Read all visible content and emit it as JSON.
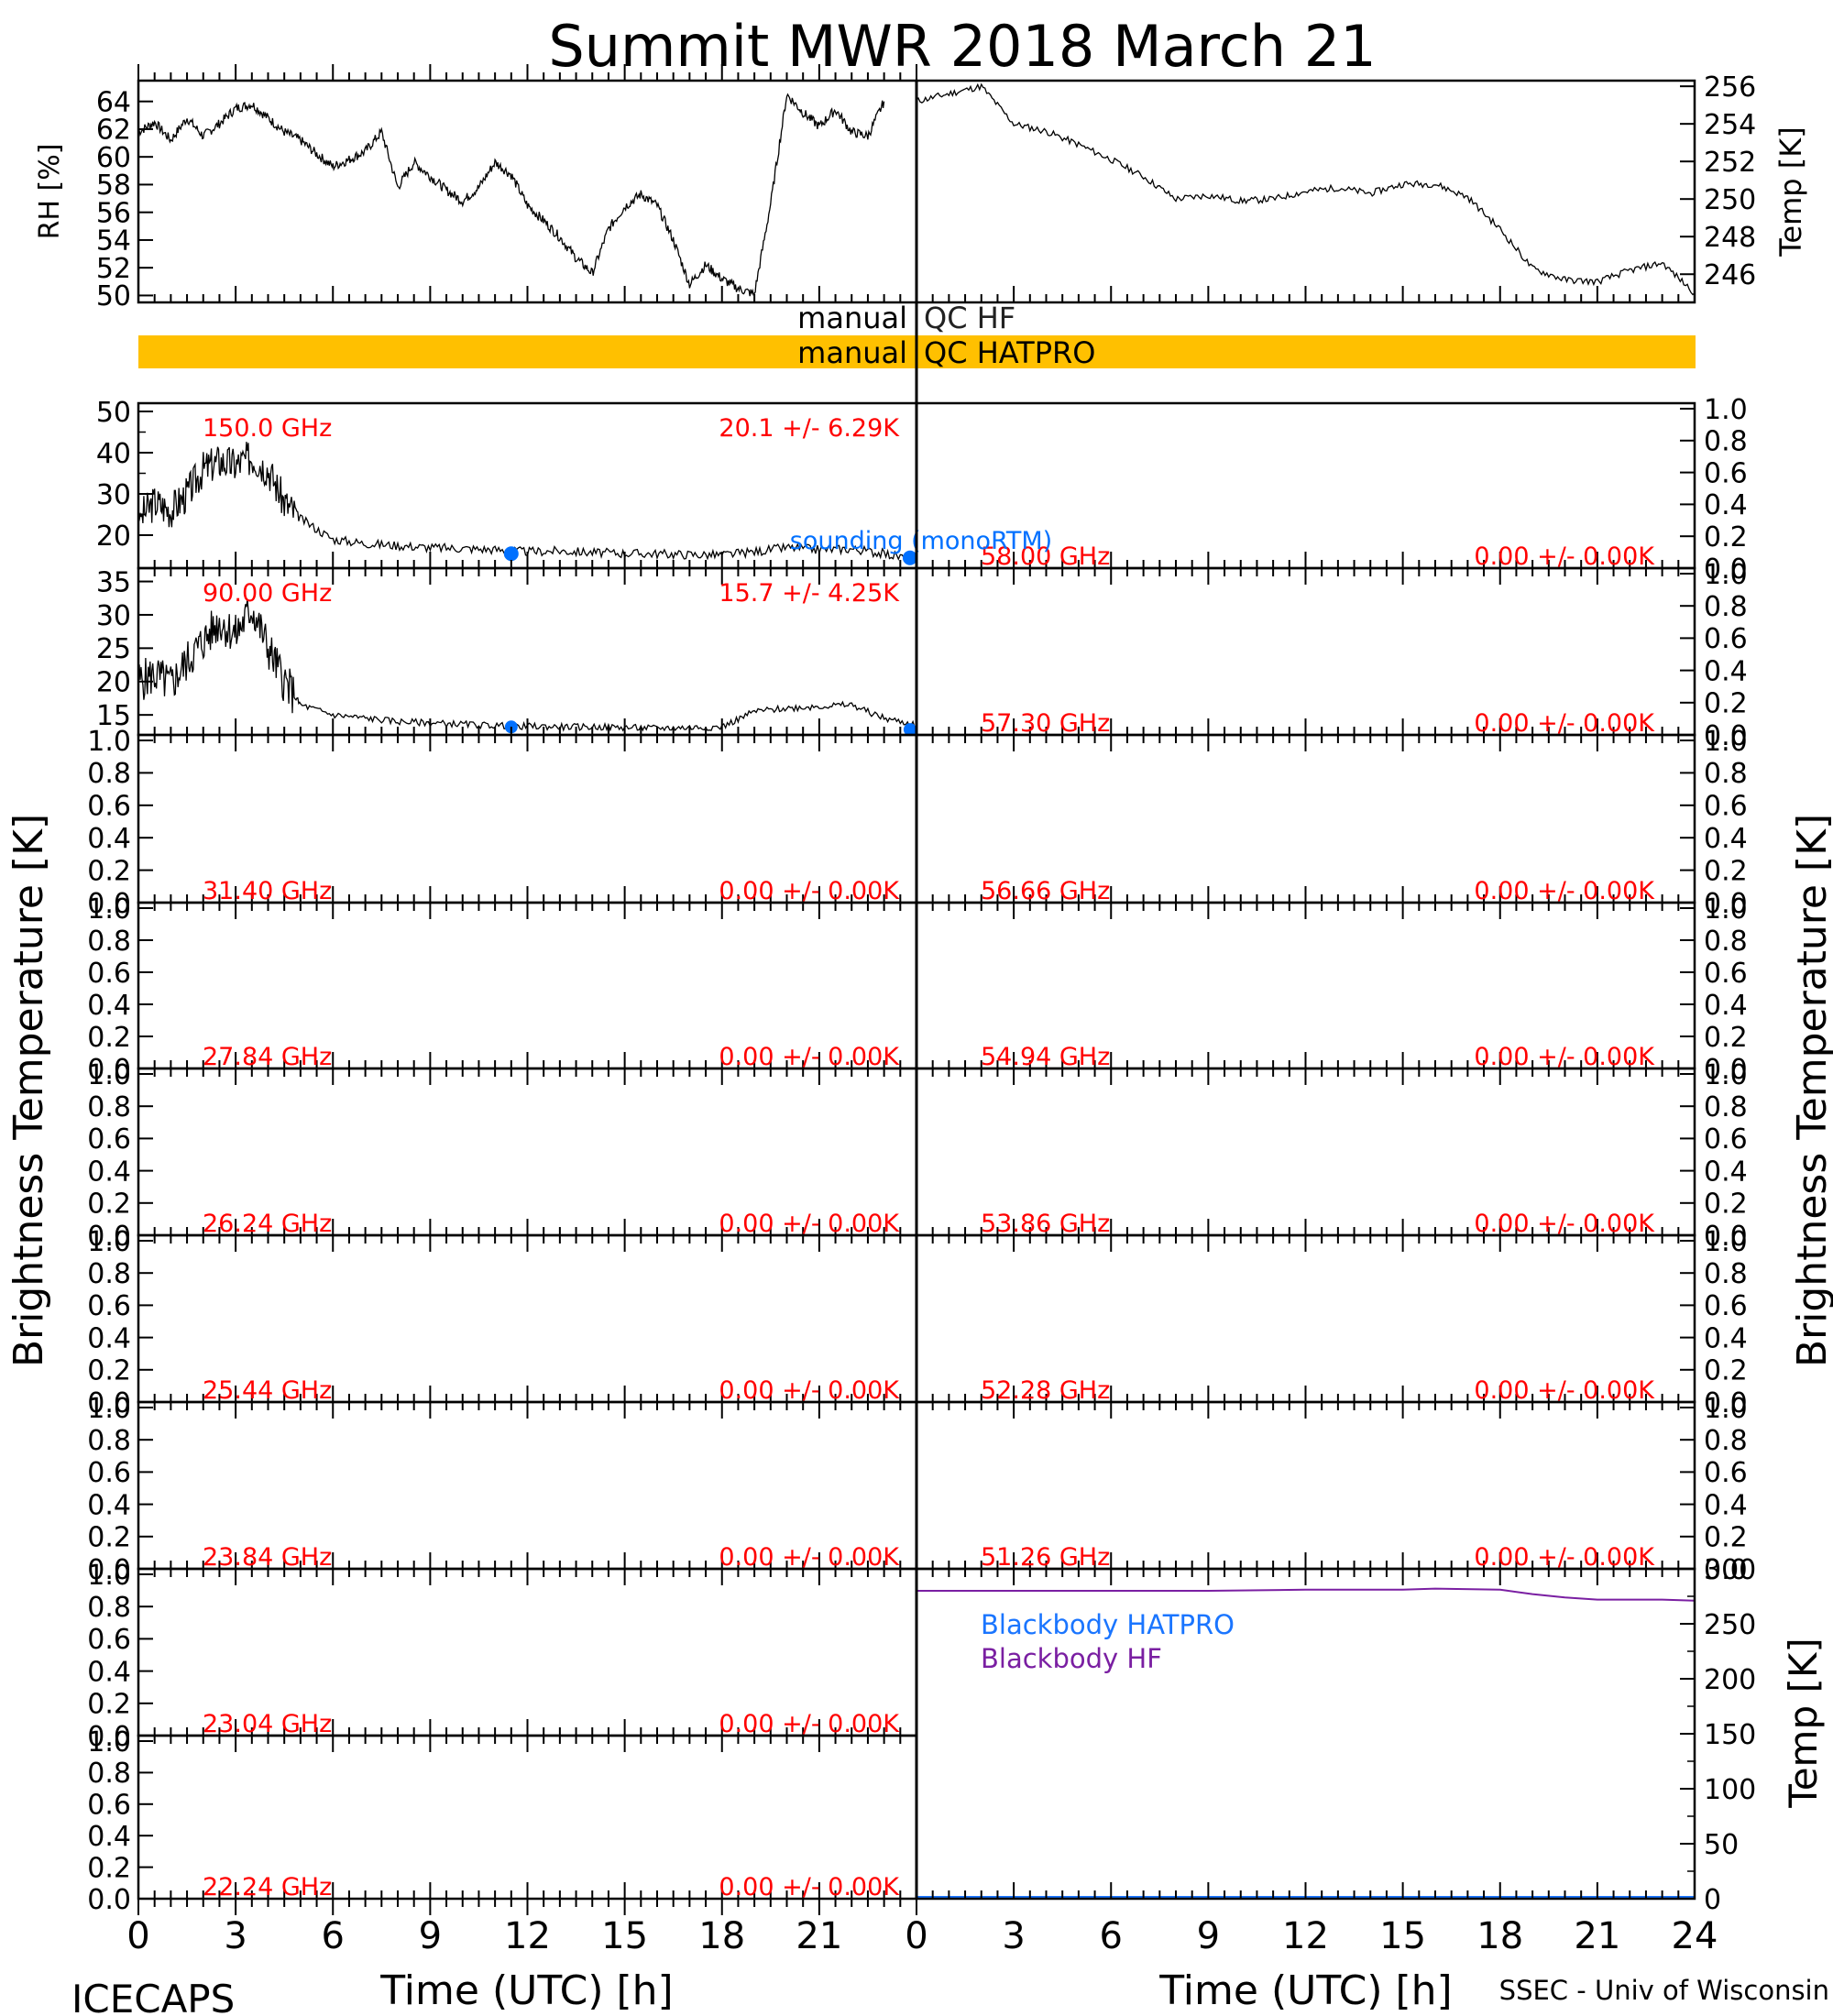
{
  "title": "Summit MWR 2018 March 21",
  "footer": {
    "left": "ICECAPS",
    "right": "SSEC - Univ of Wisconsin"
  },
  "x_axis": {
    "label": "Time (UTC) [h]",
    "range": [
      0,
      24
    ],
    "ticks": [
      "0",
      "3",
      "6",
      "9",
      "12",
      "15",
      "18",
      "21",
      "24"
    ]
  },
  "y_labels": {
    "left_tb": "Brightness Temperature [K]",
    "right_tb": "Brightness Temperature [K]"
  },
  "colors": {
    "data": "#000000",
    "label_red": "#ff0000",
    "sonde": "#0070ff",
    "qc_bar": "#ffc000",
    "bb_hatpro": "#1a75ff",
    "bb_hf": "#7a1fa2"
  },
  "qc": {
    "hf_label_left": "manual",
    "hf_label_right": "QC HF",
    "hatpro_label_left": "manual",
    "hatpro_label_right": "QC HATPRO",
    "hatpro_flag": "manual (whole day)"
  },
  "chart_data": [
    {
      "id": "rh",
      "type": "line",
      "ylabel": "RH [%]",
      "ylim": [
        49.5,
        65.5
      ],
      "yticks": [
        "50",
        "52",
        "54",
        "56",
        "58",
        "60",
        "62",
        "64"
      ],
      "x": [
        0,
        0.5,
        1,
        1.5,
        2,
        2.5,
        3,
        3.5,
        4,
        4.5,
        5,
        5.5,
        6,
        6.5,
        7,
        7.5,
        8,
        8.5,
        9,
        9.5,
        10,
        10.5,
        11,
        11.5,
        12,
        12.5,
        13,
        13.5,
        14,
        14.5,
        15,
        15.5,
        16,
        16.5,
        17,
        17.5,
        18,
        18.5,
        19,
        19.5,
        20,
        20.5,
        21,
        21.5,
        22,
        22.5,
        23
      ],
      "values": [
        61.8,
        62.5,
        61.2,
        62.8,
        61.5,
        62.4,
        63.5,
        63.8,
        62.8,
        61.8,
        61.2,
        60.2,
        59.3,
        59.8,
        60.4,
        61.8,
        57.8,
        59.6,
        58.6,
        57.6,
        56.8,
        57.8,
        59.6,
        58.7,
        56.5,
        55.4,
        54.2,
        52.7,
        51.6,
        54.8,
        56.4,
        57.3,
        56.5,
        54.0,
        50.8,
        52.2,
        51.2,
        50.5,
        50.1,
        56.6,
        64.5,
        63.2,
        62.2,
        63.4,
        61.8,
        61.5,
        64.0
      ]
    },
    {
      "id": "temp",
      "type": "line",
      "ylabel": "Temp [K]",
      "ylim": [
        244.5,
        256.3
      ],
      "yticks": [
        "246",
        "248",
        "250",
        "252",
        "254",
        "256"
      ],
      "x": [
        0,
        1,
        2,
        3,
        4,
        5,
        6,
        7,
        8,
        9,
        10,
        11,
        12,
        13,
        14,
        15,
        16,
        17,
        18,
        19,
        20,
        21,
        22,
        23,
        24
      ],
      "values": [
        255.2,
        255.6,
        256.0,
        254.0,
        253.6,
        252.9,
        252.1,
        251.2,
        250.0,
        250.2,
        249.9,
        250.0,
        250.4,
        250.6,
        250.3,
        250.8,
        250.8,
        250.1,
        248.4,
        246.3,
        245.7,
        245.6,
        246.2,
        246.6,
        245.0
      ]
    },
    {
      "id": "tb150",
      "type": "line",
      "freq_label": "150.0 GHz",
      "stats_label": "20.1 +/-  6.29K",
      "ylim": [
        12,
        52
      ],
      "yticks": [
        "20",
        "30",
        "40",
        "50"
      ],
      "x": [
        0,
        0.5,
        1,
        1.5,
        2,
        2.5,
        3,
        3.5,
        4,
        4.5,
        5,
        6,
        7,
        8,
        9,
        10,
        11,
        12,
        13,
        14,
        15,
        16,
        17,
        18,
        19,
        20,
        21,
        22,
        23,
        24
      ],
      "values": [
        24,
        28,
        26,
        30,
        36,
        38,
        37,
        39,
        36,
        28,
        24,
        19,
        18,
        17.5,
        17,
        16.8,
        16.5,
        16,
        16.2,
        15.8,
        15.6,
        15.5,
        15.3,
        15.2,
        16,
        17,
        16.5,
        16.7,
        15.5,
        14
      ],
      "sonde": [
        {
          "x": 11.5,
          "y": 15.5
        },
        {
          "x": 23.8,
          "y": 14.5
        }
      ],
      "sonde_label": "sounding (monoRTM)"
    },
    {
      "id": "tb90",
      "type": "line",
      "freq_label": "90.00 GHz",
      "stats_label": "15.7 +/-  4.25K",
      "ylim": [
        12,
        37
      ],
      "yticks": [
        "15",
        "20",
        "25",
        "30",
        "35"
      ],
      "x": [
        0,
        0.5,
        1,
        1.5,
        2,
        2.5,
        3,
        3.5,
        4,
        4.5,
        5,
        6,
        7,
        8,
        9,
        10,
        11,
        12,
        13,
        14,
        15,
        16,
        17,
        18,
        19,
        20,
        21,
        22,
        23,
        24
      ],
      "values": [
        20,
        21,
        19.5,
        23,
        26,
        29,
        27,
        31,
        25,
        20,
        16.5,
        15,
        14.5,
        14,
        13.8,
        13.6,
        13.4,
        13.3,
        13.2,
        13.2,
        13.1,
        13.0,
        13.1,
        13.2,
        15.5,
        16,
        16.3,
        16.5,
        14.5,
        13.5
      ],
      "sonde": [
        {
          "x": 11.5,
          "y": 13.2
        },
        {
          "x": 23.8,
          "y": 12.8
        }
      ]
    }
  ],
  "empty_panels_left": [
    {
      "freq": "31.40 GHz",
      "stats": "0.00 +/-  0.00K"
    },
    {
      "freq": "27.84 GHz",
      "stats": "0.00 +/-  0.00K"
    },
    {
      "freq": "26.24 GHz",
      "stats": "0.00 +/-  0.00K"
    },
    {
      "freq": "25.44 GHz",
      "stats": "0.00 +/-  0.00K"
    },
    {
      "freq": "23.84 GHz",
      "stats": "0.00 +/-  0.00K"
    },
    {
      "freq": "23.04 GHz",
      "stats": "0.00 +/-  0.00K"
    },
    {
      "freq": "22.24 GHz",
      "stats": "0.00 +/-  0.00K"
    }
  ],
  "empty_panels_right": [
    {
      "freq": "58.00 GHz",
      "stats": "0.00 +/-  0.00K"
    },
    {
      "freq": "57.30 GHz",
      "stats": "0.00 +/-  0.00K"
    },
    {
      "freq": "56.66 GHz",
      "stats": "0.00 +/-  0.00K"
    },
    {
      "freq": "54.94 GHz",
      "stats": "0.00 +/-  0.00K"
    },
    {
      "freq": "53.86 GHz",
      "stats": "0.00 +/-  0.00K"
    },
    {
      "freq": "52.28 GHz",
      "stats": "0.00 +/-  0.00K"
    },
    {
      "freq": "51.26 GHz",
      "stats": "0.00 +/-  0.00K"
    }
  ],
  "empty_yticks": [
    "0.0",
    "0.2",
    "0.4",
    "0.6",
    "0.8",
    "1.0"
  ],
  "blackbody": {
    "type": "line",
    "ylabel": "Temp [K]",
    "ylim": [
      0,
      300
    ],
    "yticks": [
      "0",
      "50",
      "100",
      "150",
      "200",
      "250",
      "300"
    ],
    "legend": [
      "Blackbody HATPRO",
      "Blackbody HF"
    ],
    "hf_x": [
      0,
      3,
      6,
      9,
      12,
      15,
      16,
      18,
      19,
      20,
      21,
      22,
      23,
      24
    ],
    "hf_values": [
      280,
      280,
      280,
      280,
      281,
      281,
      282,
      281,
      277,
      274,
      272,
      272,
      272,
      271
    ],
    "hatpro_values": [
      0
    ]
  }
}
